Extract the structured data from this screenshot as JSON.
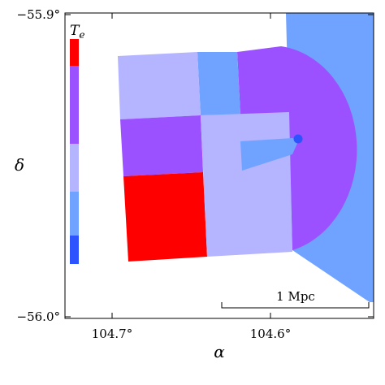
{
  "chart_data": {
    "type": "heatmap",
    "xlabel": "α",
    "ylabel": "δ",
    "x_axis": {
      "reversed": true,
      "ticks": [
        "104.7°",
        "104.6°"
      ],
      "tick_values": [
        104.7,
        104.6
      ]
    },
    "y_axis": {
      "ticks": [
        "−55.9°",
        "−56.0°"
      ],
      "tick_values": [
        -55.9,
        -56.0
      ]
    },
    "xlim": [
      104.72,
      104.54
    ],
    "ylim": [
      -56.0,
      -55.9
    ],
    "colorbar": {
      "title": "T",
      "subscript": "e",
      "colors": [
        "#ff0000",
        "#9b51ff",
        "#b4b4ff",
        "#70a3ff",
        "#2d53ff"
      ]
    },
    "regions": [
      {
        "name": "red",
        "color": "#ff0000"
      },
      {
        "name": "violet",
        "color": "#9b51ff"
      },
      {
        "name": "lavender",
        "color": "#b4b4ff"
      },
      {
        "name": "blue",
        "color": "#70a3ff"
      }
    ],
    "marker": {
      "color": "#2d53ff",
      "x": 104.585,
      "y": -55.939
    },
    "scale_bar": {
      "label": "1 Mpc"
    },
    "grid": false,
    "legend": "colorbar-left"
  }
}
